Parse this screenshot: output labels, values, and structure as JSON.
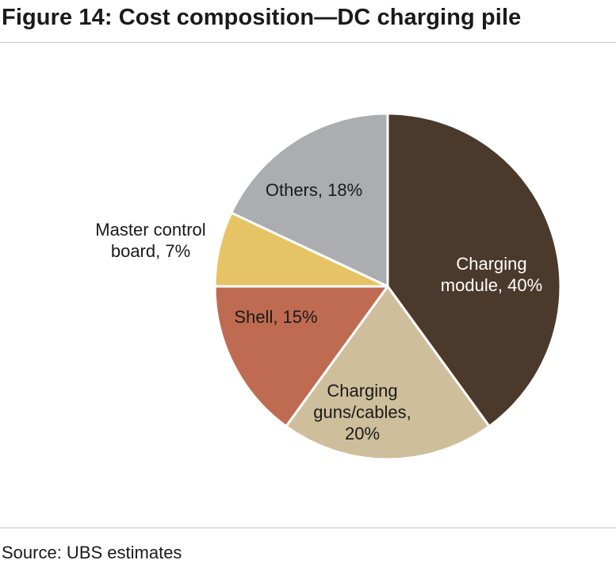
{
  "figure": {
    "title": "Figure 14: Cost composition—DC charging pile",
    "source": "Source: UBS estimates"
  },
  "chart_data": {
    "type": "pie",
    "title": "Cost composition—DC charging pile",
    "start": "12 o'clock, clockwise",
    "slices": [
      {
        "label": [
          "Charging",
          "module, 40%"
        ],
        "name": "Charging module",
        "value": 40,
        "color": "#4b392c",
        "text_color": "#ffffff"
      },
      {
        "label": [
          "Charging",
          "guns/cables,",
          "20%"
        ],
        "name": "Charging guns/cables",
        "value": 20,
        "color": "#cfbe9c",
        "text_color": "#1a1a1a"
      },
      {
        "label": [
          "Shell, 15%"
        ],
        "name": "Shell",
        "value": 15,
        "color": "#bf6b51",
        "text_color": "#1a1a1a"
      },
      {
        "label": [
          "Master control",
          "board, 7%"
        ],
        "name": "Master control board",
        "value": 7,
        "color": "#e6c466",
        "text_color": "#1a1a1a"
      },
      {
        "label": [
          "Others, 18%"
        ],
        "name": "Others",
        "value": 18,
        "color": "#acadb1",
        "text_color": "#1a1a1a"
      }
    ]
  }
}
